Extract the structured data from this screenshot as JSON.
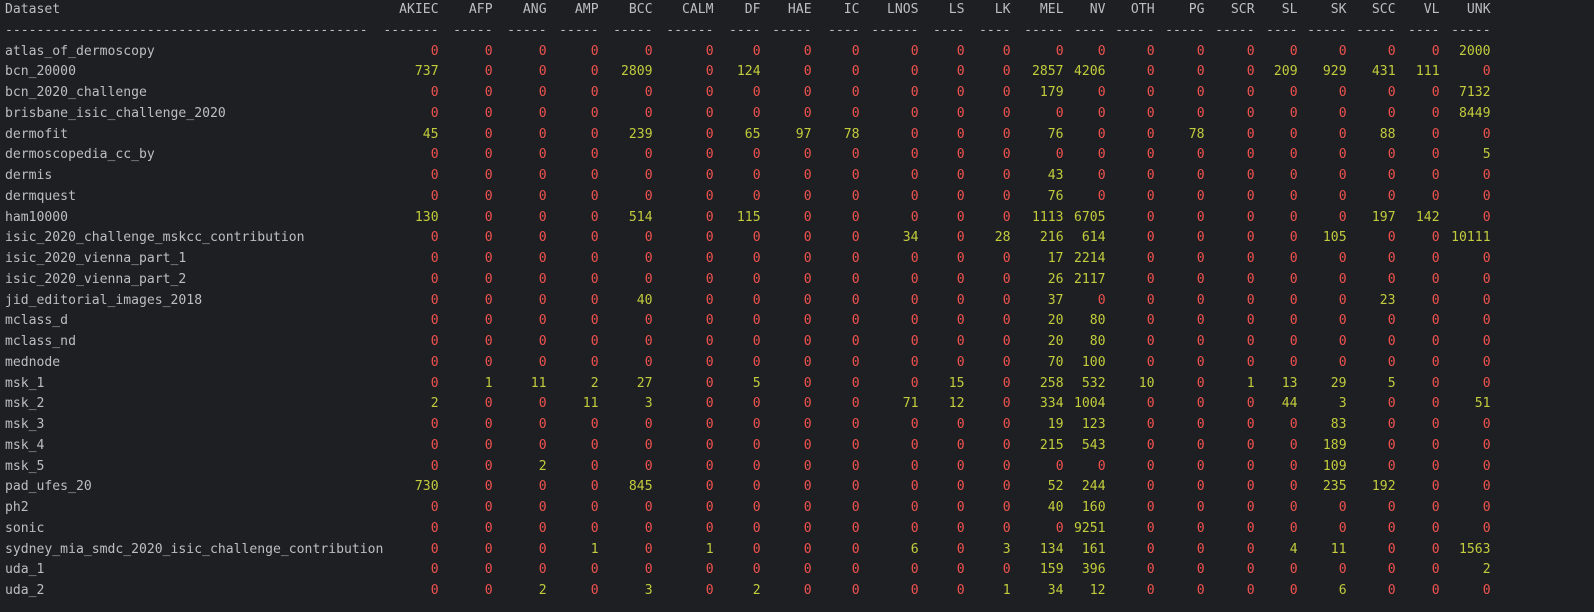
{
  "columns": [
    "Dataset",
    "AKIEC",
    "AFP",
    "ANG",
    "AMP",
    "BCC",
    "CALM",
    "DF",
    "HAE",
    "IC",
    "LNOS",
    "LS",
    "LK",
    "MEL",
    "NV",
    "OTH",
    "PG",
    "SCR",
    "SL",
    "SK",
    "SCC",
    "VL",
    "UNK"
  ],
  "separators": [
    "----------------------------------------------",
    "-------",
    "-----",
    "-----",
    "-----",
    "-----",
    "------",
    "----",
    "-----",
    "----",
    "------",
    "----",
    "----",
    "-----",
    "----",
    "-----",
    "-----",
    "-----",
    "----",
    "-----",
    "-----",
    "----",
    "-----"
  ],
  "rows": [
    {
      "name": "atlas_of_dermoscopy",
      "values": [
        0,
        0,
        0,
        0,
        0,
        0,
        0,
        0,
        0,
        0,
        0,
        0,
        0,
        0,
        0,
        0,
        0,
        0,
        0,
        0,
        0,
        2000
      ]
    },
    {
      "name": "bcn_20000",
      "values": [
        737,
        0,
        0,
        0,
        2809,
        0,
        124,
        0,
        0,
        0,
        0,
        0,
        2857,
        4206,
        0,
        0,
        0,
        209,
        929,
        431,
        111,
        0
      ]
    },
    {
      "name": "bcn_2020_challenge",
      "values": [
        0,
        0,
        0,
        0,
        0,
        0,
        0,
        0,
        0,
        0,
        0,
        0,
        179,
        0,
        0,
        0,
        0,
        0,
        0,
        0,
        0,
        7132
      ]
    },
    {
      "name": "brisbane_isic_challenge_2020",
      "values": [
        0,
        0,
        0,
        0,
        0,
        0,
        0,
        0,
        0,
        0,
        0,
        0,
        0,
        0,
        0,
        0,
        0,
        0,
        0,
        0,
        0,
        8449
      ]
    },
    {
      "name": "dermofit",
      "values": [
        45,
        0,
        0,
        0,
        239,
        0,
        65,
        97,
        78,
        0,
        0,
        0,
        76,
        0,
        0,
        78,
        0,
        0,
        0,
        88,
        0,
        0
      ]
    },
    {
      "name": "dermoscopedia_cc_by",
      "values": [
        0,
        0,
        0,
        0,
        0,
        0,
        0,
        0,
        0,
        0,
        0,
        0,
        0,
        0,
        0,
        0,
        0,
        0,
        0,
        0,
        0,
        5
      ]
    },
    {
      "name": "dermis",
      "values": [
        0,
        0,
        0,
        0,
        0,
        0,
        0,
        0,
        0,
        0,
        0,
        0,
        43,
        0,
        0,
        0,
        0,
        0,
        0,
        0,
        0,
        0
      ]
    },
    {
      "name": "dermquest",
      "values": [
        0,
        0,
        0,
        0,
        0,
        0,
        0,
        0,
        0,
        0,
        0,
        0,
        76,
        0,
        0,
        0,
        0,
        0,
        0,
        0,
        0,
        0
      ]
    },
    {
      "name": "ham10000",
      "values": [
        130,
        0,
        0,
        0,
        514,
        0,
        115,
        0,
        0,
        0,
        0,
        0,
        1113,
        6705,
        0,
        0,
        0,
        0,
        0,
        197,
        142,
        0
      ]
    },
    {
      "name": "isic_2020_challenge_mskcc_contribution",
      "values": [
        0,
        0,
        0,
        0,
        0,
        0,
        0,
        0,
        0,
        34,
        0,
        28,
        216,
        614,
        0,
        0,
        0,
        0,
        105,
        0,
        0,
        10111
      ]
    },
    {
      "name": "isic_2020_vienna_part_1",
      "values": [
        0,
        0,
        0,
        0,
        0,
        0,
        0,
        0,
        0,
        0,
        0,
        0,
        17,
        2214,
        0,
        0,
        0,
        0,
        0,
        0,
        0,
        0
      ]
    },
    {
      "name": "isic_2020_vienna_part_2",
      "values": [
        0,
        0,
        0,
        0,
        0,
        0,
        0,
        0,
        0,
        0,
        0,
        0,
        26,
        2117,
        0,
        0,
        0,
        0,
        0,
        0,
        0,
        0
      ]
    },
    {
      "name": "jid_editorial_images_2018",
      "values": [
        0,
        0,
        0,
        0,
        40,
        0,
        0,
        0,
        0,
        0,
        0,
        0,
        37,
        0,
        0,
        0,
        0,
        0,
        0,
        23,
        0,
        0
      ]
    },
    {
      "name": "mclass_d",
      "values": [
        0,
        0,
        0,
        0,
        0,
        0,
        0,
        0,
        0,
        0,
        0,
        0,
        20,
        80,
        0,
        0,
        0,
        0,
        0,
        0,
        0,
        0
      ]
    },
    {
      "name": "mclass_nd",
      "values": [
        0,
        0,
        0,
        0,
        0,
        0,
        0,
        0,
        0,
        0,
        0,
        0,
        20,
        80,
        0,
        0,
        0,
        0,
        0,
        0,
        0,
        0
      ]
    },
    {
      "name": "mednode",
      "values": [
        0,
        0,
        0,
        0,
        0,
        0,
        0,
        0,
        0,
        0,
        0,
        0,
        70,
        100,
        0,
        0,
        0,
        0,
        0,
        0,
        0,
        0
      ]
    },
    {
      "name": "msk_1",
      "values": [
        0,
        1,
        11,
        2,
        27,
        0,
        5,
        0,
        0,
        0,
        15,
        0,
        258,
        532,
        10,
        0,
        1,
        13,
        29,
        5,
        0,
        0
      ]
    },
    {
      "name": "msk_2",
      "values": [
        2,
        0,
        0,
        11,
        3,
        0,
        0,
        0,
        0,
        71,
        12,
        0,
        334,
        1004,
        0,
        0,
        0,
        44,
        3,
        0,
        0,
        51
      ]
    },
    {
      "name": "msk_3",
      "values": [
        0,
        0,
        0,
        0,
        0,
        0,
        0,
        0,
        0,
        0,
        0,
        0,
        19,
        123,
        0,
        0,
        0,
        0,
        83,
        0,
        0,
        0
      ]
    },
    {
      "name": "msk_4",
      "values": [
        0,
        0,
        0,
        0,
        0,
        0,
        0,
        0,
        0,
        0,
        0,
        0,
        215,
        543,
        0,
        0,
        0,
        0,
        189,
        0,
        0,
        0
      ]
    },
    {
      "name": "msk_5",
      "values": [
        0,
        0,
        2,
        0,
        0,
        0,
        0,
        0,
        0,
        0,
        0,
        0,
        0,
        0,
        0,
        0,
        0,
        0,
        109,
        0,
        0,
        0
      ]
    },
    {
      "name": "pad_ufes_20",
      "values": [
        730,
        0,
        0,
        0,
        845,
        0,
        0,
        0,
        0,
        0,
        0,
        0,
        52,
        244,
        0,
        0,
        0,
        0,
        235,
        192,
        0,
        0
      ]
    },
    {
      "name": "ph2",
      "values": [
        0,
        0,
        0,
        0,
        0,
        0,
        0,
        0,
        0,
        0,
        0,
        0,
        40,
        160,
        0,
        0,
        0,
        0,
        0,
        0,
        0,
        0
      ]
    },
    {
      "name": "sonic",
      "values": [
        0,
        0,
        0,
        0,
        0,
        0,
        0,
        0,
        0,
        0,
        0,
        0,
        0,
        9251,
        0,
        0,
        0,
        0,
        0,
        0,
        0,
        0
      ]
    },
    {
      "name": "sydney_mia_smdc_2020_isic_challenge_contribution",
      "values": [
        0,
        0,
        0,
        1,
        0,
        1,
        0,
        0,
        0,
        6,
        0,
        3,
        134,
        161,
        0,
        0,
        0,
        4,
        11,
        0,
        0,
        1563
      ]
    },
    {
      "name": "uda_1",
      "values": [
        0,
        0,
        0,
        0,
        0,
        0,
        0,
        0,
        0,
        0,
        0,
        0,
        159,
        396,
        0,
        0,
        0,
        0,
        0,
        0,
        0,
        2
      ]
    },
    {
      "name": "uda_2",
      "values": [
        0,
        0,
        2,
        0,
        3,
        0,
        2,
        0,
        0,
        0,
        0,
        1,
        34,
        12,
        0,
        0,
        0,
        0,
        6,
        0,
        0,
        0
      ]
    }
  ]
}
